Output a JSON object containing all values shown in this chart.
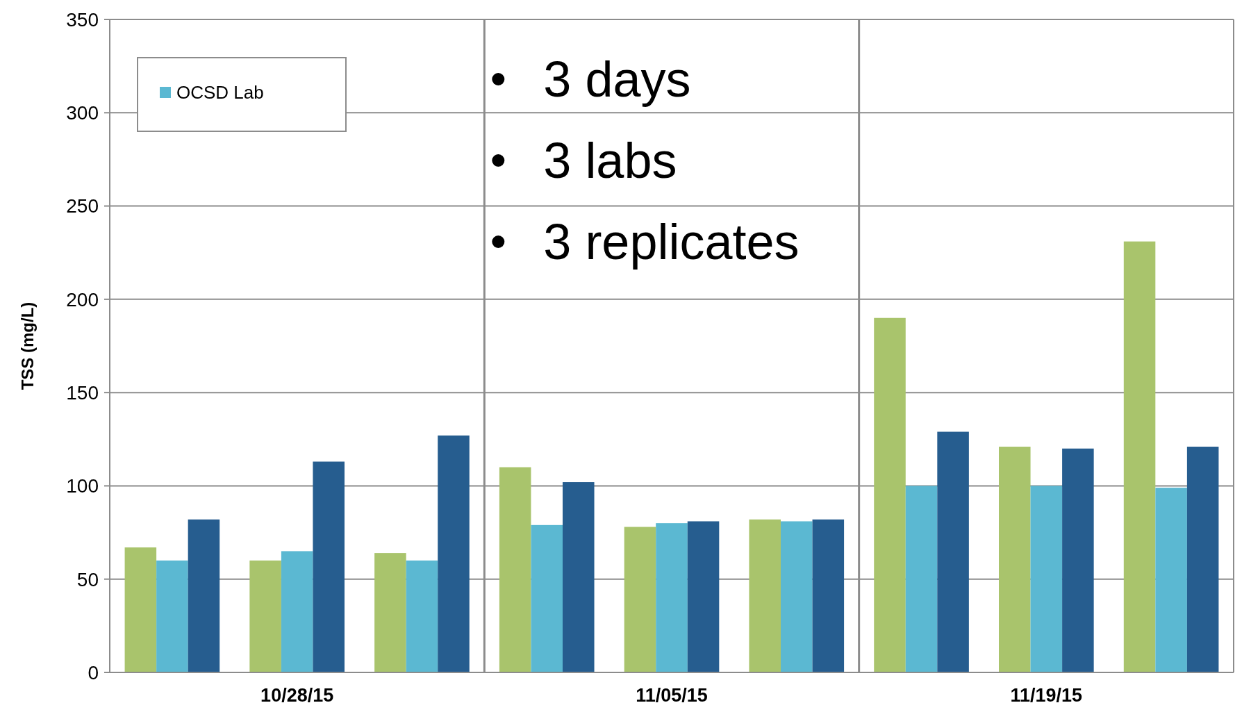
{
  "chart_data": {
    "type": "bar",
    "ylabel": "TSS (mg/L)",
    "categories": [
      null,
      "10/28/15",
      null,
      null,
      "11/05/15",
      null,
      null,
      "11/19/15",
      null
    ],
    "series": [
      {
        "color": "#a9c46c",
        "values": [
          67,
          60,
          64,
          110,
          78,
          82,
          190,
          121,
          231
        ]
      },
      {
        "name": "OCSD Lab",
        "color": "#5bb8d2",
        "values": [
          60,
          65,
          60,
          79,
          80,
          81,
          100,
          100,
          99
        ]
      },
      {
        "color": "#265d8f",
        "values": [
          82,
          113,
          127,
          102,
          81,
          82,
          129,
          120,
          121
        ]
      }
    ],
    "ylim": [
      0,
      350
    ],
    "yticks": [
      0,
      50,
      100,
      150,
      200,
      250,
      300,
      350
    ],
    "grid": true,
    "legend": "top left",
    "annotations": [
      "3 days",
      "3 labs",
      "3 replicates"
    ]
  }
}
